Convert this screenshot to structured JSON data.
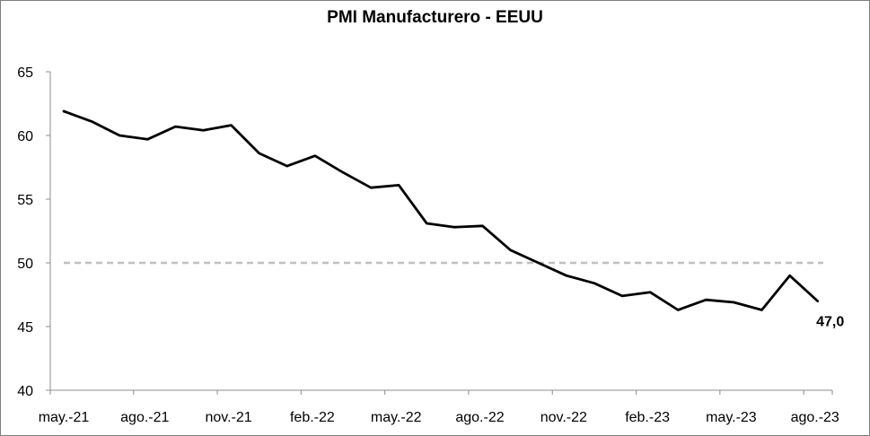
{
  "chart_data": {
    "type": "line",
    "title": "PMI Manufacturero - EEUU",
    "xlabel": "",
    "ylabel": "",
    "ylim": [
      40,
      65
    ],
    "y_ticks": [
      40,
      45,
      50,
      55,
      60,
      65
    ],
    "x_tick_labels": [
      "may.-21",
      "ago.-21",
      "nov.-21",
      "feb.-22",
      "may.-22",
      "ago.-22",
      "nov.-22",
      "feb.-23",
      "may.-23",
      "ago.-23"
    ],
    "x": [
      "2021-05",
      "2021-06",
      "2021-07",
      "2021-08",
      "2021-09",
      "2021-10",
      "2021-11",
      "2021-12",
      "2022-01",
      "2022-02",
      "2022-03",
      "2022-04",
      "2022-05",
      "2022-06",
      "2022-07",
      "2022-08",
      "2022-09",
      "2022-10",
      "2022-11",
      "2022-12",
      "2023-01",
      "2023-02",
      "2023-03",
      "2023-04",
      "2023-05",
      "2023-06",
      "2023-07",
      "2023-08"
    ],
    "series": [
      {
        "values": [
          61.9,
          61.1,
          60.0,
          59.7,
          60.7,
          60.4,
          60.8,
          58.6,
          57.6,
          58.4,
          57.1,
          55.9,
          56.1,
          53.1,
          52.8,
          52.9,
          51.0,
          50.0,
          49.0,
          48.4,
          47.4,
          47.7,
          46.3,
          47.1,
          46.9,
          46.3,
          49.0,
          47.0
        ],
        "color": "#000000"
      }
    ],
    "reference_line": {
      "value": 50,
      "style": "dashed",
      "color": "#bfbfbf"
    },
    "end_label": "47,0",
    "grid": false,
    "legend": "none"
  }
}
